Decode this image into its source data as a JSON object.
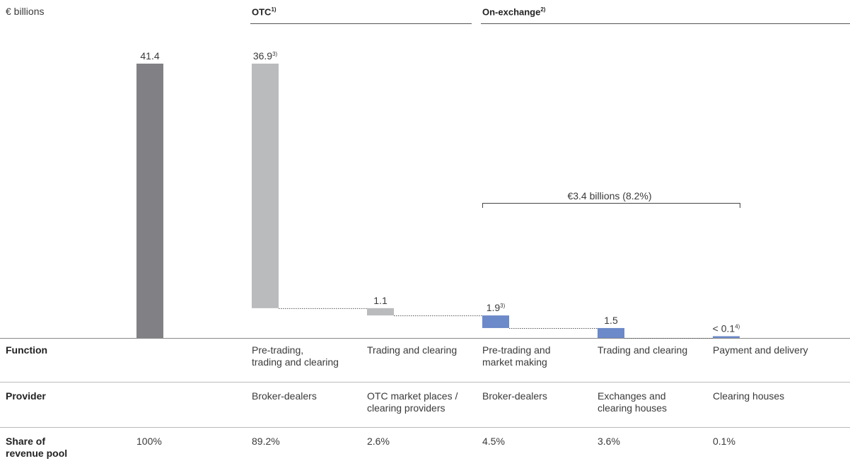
{
  "unit_label": "€ billions",
  "groups": {
    "otc": {
      "label": "OTC",
      "note": "1)"
    },
    "onx": {
      "label": "On-exchange",
      "note": "2)"
    }
  },
  "bracket_label": "€3.4 billions (8.2%)",
  "colors": {
    "total": "#818185",
    "otc": "#babbbd",
    "onx": "#6c89c9"
  },
  "chart_data": {
    "type": "bar",
    "variant": "waterfall",
    "title": "",
    "ylabel": "€ billions",
    "ylim": [
      0,
      41.4
    ],
    "bars": [
      {
        "id": "total",
        "value": 41.4,
        "start": 0,
        "label": "41.4",
        "note": "",
        "group": "total"
      },
      {
        "id": "otc1",
        "value": 36.9,
        "start": 4.5,
        "label": "36.9",
        "note": "3)",
        "group": "otc"
      },
      {
        "id": "otc2",
        "value": 1.1,
        "start": 3.4,
        "label": "1.1",
        "note": "",
        "group": "otc"
      },
      {
        "id": "onx1",
        "value": 1.9,
        "start": 1.5,
        "label": "1.9",
        "note": "3)",
        "group": "onx"
      },
      {
        "id": "onx2",
        "value": 1.5,
        "start": 0.0,
        "label": "1.5",
        "note": "",
        "group": "onx"
      },
      {
        "id": "onx3",
        "value": 0.1,
        "start": 0.0,
        "label": "< 0.1",
        "note": "4)",
        "group": "onx"
      }
    ]
  },
  "table": {
    "rows": [
      {
        "header": "Function",
        "cells": [
          "",
          "Pre-trading,\ntrading and clearing",
          "Trading and clearing",
          "Pre-trading and\nmarket making",
          "Trading and clearing",
          "Payment and delivery"
        ]
      },
      {
        "header": "Provider",
        "cells": [
          "",
          "Broker-dealers",
          "OTC market places /\nclearing providers",
          "Broker-dealers",
          "Exchanges and\nclearing houses",
          "Clearing houses"
        ]
      },
      {
        "header": "Share of\nrevenue pool",
        "cells": [
          "100%",
          "89.2%",
          "2.6%",
          "4.5%",
          "3.6%",
          "0.1%"
        ]
      }
    ]
  }
}
